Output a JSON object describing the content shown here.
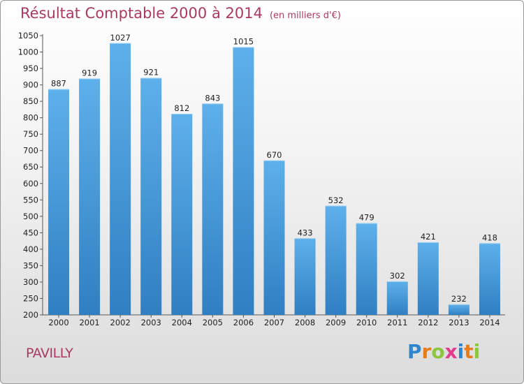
{
  "chart_data": {
    "type": "bar",
    "title": "Résultat Comptable 2000 à 2014",
    "subtitle": "(en milliers d'€)",
    "categories": [
      "2000",
      "2001",
      "2002",
      "2003",
      "2004",
      "2005",
      "2006",
      "2007",
      "2008",
      "2009",
      "2010",
      "2011",
      "2012",
      "2013",
      "2014"
    ],
    "values": [
      887,
      919,
      1027,
      921,
      812,
      843,
      1015,
      670,
      433,
      532,
      479,
      302,
      421,
      232,
      418
    ],
    "ylim": [
      200,
      1050
    ],
    "yticks": [
      200,
      250,
      300,
      350,
      400,
      450,
      500,
      550,
      600,
      650,
      700,
      750,
      800,
      850,
      900,
      950,
      1000,
      1050
    ],
    "xlabel": "",
    "ylabel": "",
    "grid": false,
    "bar_color_top": "#5eb0ea",
    "bar_color_bottom": "#2f7fc2"
  },
  "commune": "PAVILLY",
  "logo": {
    "letters": [
      "P",
      "r",
      "o",
      "x",
      "i",
      "t",
      "i"
    ],
    "colors": [
      "#2f86cf",
      "#e87b1c",
      "#8cc63f",
      "#e23c8c",
      "#2f86cf",
      "#e87b1c",
      "#8cc63f"
    ]
  }
}
